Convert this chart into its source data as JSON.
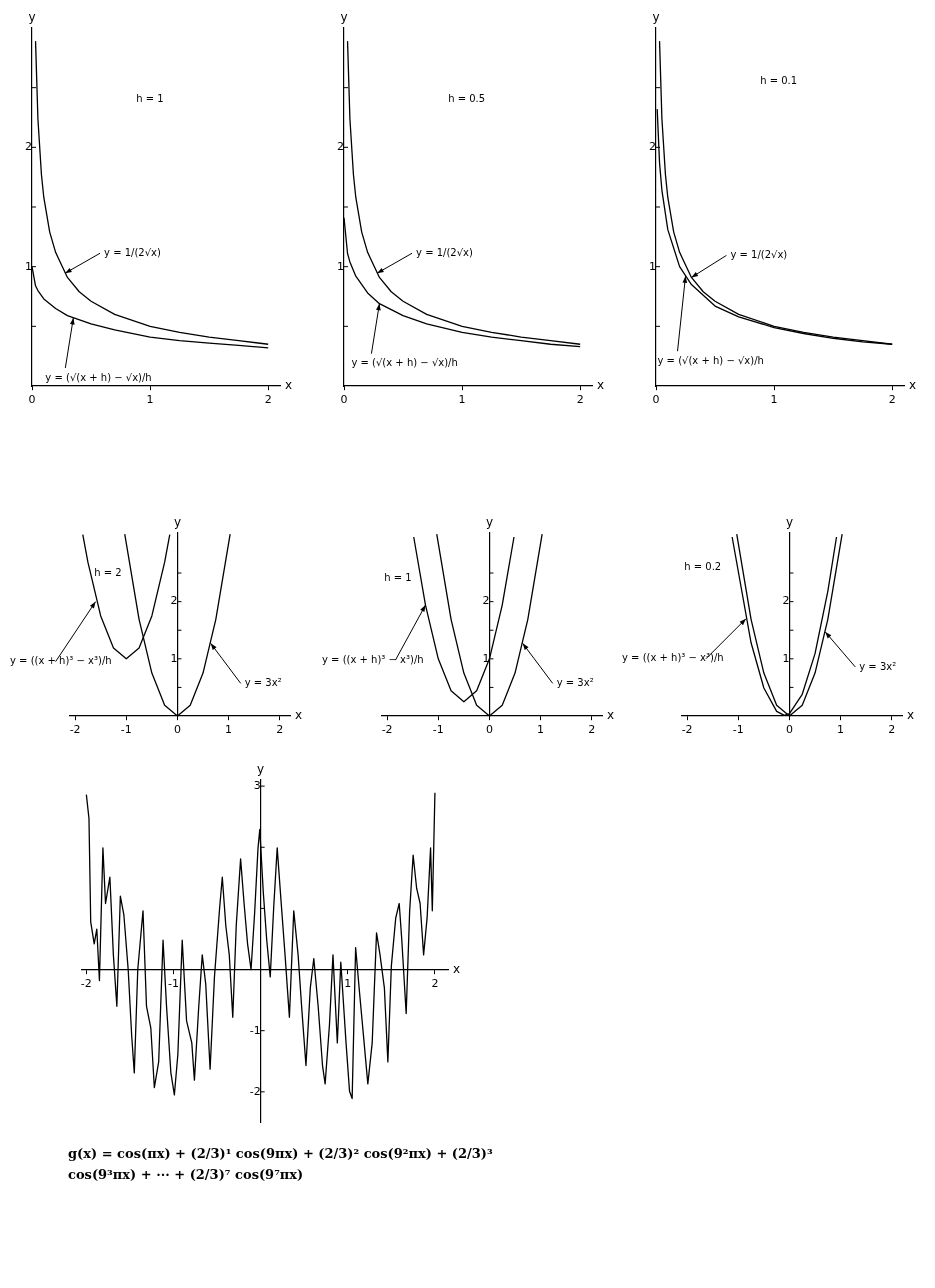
{
  "chart_data": [
    {
      "type": "line",
      "xlabel": "x",
      "ylabel": "y",
      "xlim": [
        0,
        2.1
      ],
      "ylim": [
        0,
        3
      ],
      "xticks": [
        0,
        1,
        2
      ],
      "yticks": [
        {
          "value": 0.5,
          "label": null
        },
        1,
        {
          "value": 1.5,
          "label": null
        },
        2,
        {
          "value": 2.5,
          "label": null
        }
      ],
      "marker": "none",
      "line_style": "solid",
      "annotations": [
        "h = 1",
        {
          "text": "y = 1/(2√x)",
          "x": 0.28,
          "y": 0.945
        },
        {
          "text": "y = (√(x + h) − √x)/h",
          "x": 0.35,
          "y": 0.57
        }
      ],
      "series": [
        {
          "color": "#000000",
          "x": [
            0.03,
            0.05,
            0.08,
            0.1,
            0.15,
            0.2,
            0.3,
            0.4,
            0.5,
            0.7,
            1,
            1.25,
            1.5,
            1.75,
            2
          ],
          "values": [
            2.89,
            2.24,
            1.77,
            1.58,
            1.29,
            1.12,
            0.91,
            0.79,
            0.71,
            0.6,
            0.5,
            0.45,
            0.41,
            0.38,
            0.35
          ]
        },
        {
          "color": "#000000",
          "x": [
            0,
            0.03,
            0.05,
            0.1,
            0.2,
            0.3,
            0.5,
            0.7,
            1,
            1.25,
            1.5,
            1.75,
            2
          ],
          "values": [
            1,
            0.84,
            0.8,
            0.73,
            0.65,
            0.59,
            0.52,
            0.47,
            0.41,
            0.38,
            0.36,
            0.34,
            0.32
          ]
        }
      ]
    },
    {
      "type": "line",
      "xlabel": "x",
      "ylabel": "y",
      "xlim": [
        0,
        2.1
      ],
      "ylim": [
        0,
        3
      ],
      "xticks": [
        0,
        1,
        2
      ],
      "yticks": [
        {
          "value": 0.5,
          "label": null
        },
        1,
        {
          "value": 1.5,
          "label": null
        },
        2,
        {
          "value": 2.5,
          "label": null
        }
      ],
      "marker": "none",
      "line_style": "solid",
      "annotations": [
        "h = 0.5",
        {
          "text": "y = 1/(2√x)",
          "x": 0.28,
          "y": 0.945
        },
        {
          "text": "y = (√(x + h) − √x)/h",
          "x": 0.3,
          "y": 0.69
        }
      ],
      "series": [
        {
          "color": "#000000",
          "x": [
            0.03,
            0.05,
            0.08,
            0.1,
            0.15,
            0.2,
            0.3,
            0.4,
            0.5,
            0.7,
            1,
            1.25,
            1.5,
            1.75,
            2
          ],
          "values": [
            2.89,
            2.24,
            1.77,
            1.58,
            1.29,
            1.12,
            0.91,
            0.79,
            0.71,
            0.6,
            0.5,
            0.45,
            0.41,
            0.38,
            0.35
          ]
        },
        {
          "color": "#000000",
          "x": [
            0,
            0.03,
            0.05,
            0.1,
            0.2,
            0.3,
            0.5,
            0.7,
            1,
            1.25,
            1.5,
            1.75,
            2
          ],
          "values": [
            1.41,
            1.11,
            1.04,
            0.92,
            0.78,
            0.69,
            0.59,
            0.52,
            0.45,
            0.41,
            0.38,
            0.35,
            0.33
          ]
        }
      ]
    },
    {
      "type": "line",
      "xlabel": "x",
      "ylabel": "y",
      "xlim": [
        0,
        2.1
      ],
      "ylim": [
        0,
        3
      ],
      "xticks": [
        0,
        1,
        2
      ],
      "yticks": [
        {
          "value": 0.5,
          "label": null
        },
        1,
        {
          "value": 1.5,
          "label": null
        },
        2,
        {
          "value": 2.5,
          "label": null
        }
      ],
      "marker": "none",
      "line_style": "solid",
      "annotations": [
        "h = 0.1",
        {
          "text": "y = 1/(2√x)",
          "x": 0.3,
          "y": 0.91
        },
        {
          "text": "y = (√(x + h) − √x)/h",
          "x": 0.25,
          "y": 0.92
        }
      ],
      "series": [
        {
          "color": "#000000",
          "x": [
            0.03,
            0.05,
            0.08,
            0.1,
            0.15,
            0.2,
            0.3,
            0.4,
            0.5,
            0.7,
            1,
            1.25,
            1.5,
            1.75,
            2
          ],
          "values": [
            2.89,
            2.24,
            1.77,
            1.58,
            1.29,
            1.12,
            0.91,
            0.79,
            0.71,
            0.6,
            0.5,
            0.45,
            0.41,
            0.38,
            0.35
          ]
        },
        {
          "color": "#000000",
          "x": [
            0.01,
            0.03,
            0.05,
            0.1,
            0.2,
            0.3,
            0.5,
            0.7,
            1,
            1.25,
            1.5,
            1.75,
            2
          ],
          "values": [
            2.32,
            1.87,
            1.64,
            1.31,
            1,
            0.85,
            0.67,
            0.58,
            0.49,
            0.44,
            0.4,
            0.37,
            0.35
          ]
        }
      ]
    },
    {
      "type": "line",
      "xlabel": "x",
      "ylabel": "y",
      "xlim": [
        -2.1,
        2.2
      ],
      "ylim": [
        0,
        3.2
      ],
      "xticks": [
        -2,
        -1,
        0,
        1,
        2
      ],
      "yticks": [
        {
          "value": 0.5,
          "label": null
        },
        1,
        {
          "value": 1.5,
          "label": null
        },
        2,
        {
          "value": 2.5,
          "label": null
        }
      ],
      "marker": "none",
      "line_style": "solid",
      "annotations": [
        "h = 2",
        {
          "text": "y = ((x + h)³ − x³)/h",
          "x": -1.6,
          "y": 2
        },
        {
          "text": "y = 3x²",
          "x": 0.65,
          "y": 1.27
        }
      ],
      "series": [
        {
          "color": "#000000",
          "x": [
            -1.85,
            -1.75,
            -1.5,
            -1.25,
            -1,
            -0.75,
            -0.5,
            -0.25,
            -0.15
          ],
          "values": [
            3.17,
            2.69,
            1.75,
            1.19,
            1,
            1.19,
            1.75,
            2.69,
            3.17
          ]
        },
        {
          "color": "#000000",
          "x": [
            -1.03,
            -0.75,
            -0.5,
            -0.25,
            0,
            0.25,
            0.5,
            0.75,
            1.03
          ],
          "values": [
            3.18,
            1.69,
            0.75,
            0.19,
            0,
            0.19,
            0.75,
            1.69,
            3.18
          ]
        }
      ]
    },
    {
      "type": "line",
      "xlabel": "x",
      "ylabel": "y",
      "xlim": [
        -2.1,
        2.2
      ],
      "ylim": [
        0,
        3.2
      ],
      "xticks": [
        -2,
        -1,
        0,
        1,
        2
      ],
      "yticks": [
        {
          "value": 0.5,
          "label": null
        },
        1,
        {
          "value": 1.5,
          "label": null
        },
        2,
        {
          "value": 2.5,
          "label": null
        }
      ],
      "marker": "none",
      "line_style": "solid",
      "annotations": [
        "h = 1",
        {
          "text": "y = ((x + h)³ − x³)/h",
          "x": -1.25,
          "y": 1.94
        },
        {
          "text": "y = 3x²",
          "x": 0.65,
          "y": 1.27
        }
      ],
      "series": [
        {
          "color": "#000000",
          "x": [
            -1.48,
            -1.25,
            -1,
            -0.75,
            -0.5,
            -0.25,
            0,
            0.25,
            0.48
          ],
          "values": [
            3.13,
            1.94,
            1,
            0.44,
            0.25,
            0.44,
            1,
            1.94,
            3.13
          ]
        },
        {
          "color": "#000000",
          "x": [
            -1.03,
            -0.75,
            -0.5,
            -0.25,
            0,
            0.25,
            0.5,
            0.75,
            1.03
          ],
          "values": [
            3.18,
            1.69,
            0.75,
            0.19,
            0,
            0.19,
            0.75,
            1.69,
            3.18
          ]
        }
      ]
    },
    {
      "type": "line",
      "xlabel": "x",
      "ylabel": "y",
      "xlim": [
        -2.1,
        2.2
      ],
      "ylim": [
        0,
        3.2
      ],
      "xticks": [
        -2,
        -1,
        0,
        1,
        2
      ],
      "yticks": [
        {
          "value": 0.5,
          "label": null
        },
        1,
        {
          "value": 1.5,
          "label": null
        },
        2,
        {
          "value": 2.5,
          "label": null
        }
      ],
      "marker": "none",
      "line_style": "solid",
      "annotations": [
        "h = 0.2",
        {
          "text": "y = ((x + h)³ − x³)/h",
          "x": -0.85,
          "y": 1.7
        },
        {
          "text": "y = 3x²",
          "x": 0.7,
          "y": 1.47
        }
      ],
      "series": [
        {
          "color": "#000000",
          "x": [
            -1.12,
            -0.75,
            -0.5,
            -0.25,
            -0.1,
            0,
            0.25,
            0.5,
            0.75,
            0.92
          ],
          "values": [
            3.13,
            1.28,
            0.49,
            0.08,
            0.01,
            0.04,
            0.38,
            1.09,
            2.18,
            3.13
          ]
        },
        {
          "color": "#000000",
          "x": [
            -1.03,
            -0.75,
            -0.5,
            -0.25,
            0,
            0.25,
            0.5,
            0.75,
            1.03
          ],
          "values": [
            3.18,
            1.69,
            0.75,
            0.19,
            0,
            0.19,
            0.75,
            1.69,
            3.18
          ]
        }
      ]
    },
    {
      "type": "line",
      "xlabel": "x",
      "ylabel": "y",
      "xlim": [
        -2.05,
        2.15
      ],
      "ylim": [
        -2.5,
        3.1
      ],
      "xticks": [
        -2,
        -1,
        1,
        2
      ],
      "yticks": [
        -2,
        -1,
        {
          "value": 1,
          "label": null
        },
        {
          "value": 2,
          "label": null
        },
        3
      ],
      "marker": "none",
      "line_style": "solid",
      "annotations": [
        "g(x) = cos(πx) + (2/3)¹ cos(9πx) + (2/3)² cos(9²πx) + (2/3)³ cos(9³πx) + ··· + (2/3)⁷ cos(9⁷πx)"
      ],
      "series": [
        {
          "color": "#000000",
          "x": [
            -2,
            -1.97,
            -1.95,
            -1.91,
            -1.88,
            -1.85,
            -1.81,
            -1.78,
            -1.73,
            -1.69,
            -1.65,
            -1.61,
            -1.57,
            -1.52,
            -1.48,
            -1.45,
            -1.41,
            -1.35,
            -1.31,
            -1.26,
            -1.22,
            -1.17,
            -1.12,
            -1.08,
            -1.03,
            -0.99,
            -0.95,
            -0.9,
            -0.85,
            -0.79,
            -0.76,
            -0.71,
            -0.67,
            -0.63,
            -0.58,
            -0.53,
            -0.47,
            -0.44,
            -0.4,
            -0.36,
            -0.32,
            -0.28,
            -0.23,
            -0.19,
            -0.15,
            -0.11,
            -0.07,
            -0.03,
            -0.01,
            0.03,
            0.07,
            0.11,
            0.15,
            0.19,
            0.23,
            0.28,
            0.33,
            0.38,
            0.43,
            0.47,
            0.52,
            0.57,
            0.61,
            0.66,
            0.71,
            0.74,
            0.79,
            0.83,
            0.88,
            0.92,
            0.98,
            1.02,
            1.05,
            1.09,
            1.13,
            1.18,
            1.23,
            1.28,
            1.33,
            1.37,
            1.42,
            1.46,
            1.5,
            1.55,
            1.59,
            1.62,
            1.67,
            1.71,
            1.75,
            1.79,
            1.83,
            1.87,
            1.91,
            1.95,
            1.97,
            2
          ],
          "values": [
            2.86,
            2.47,
            0.78,
            0.42,
            0.66,
            -0.18,
            1.99,
            1.08,
            1.51,
            0.24,
            -0.6,
            1.2,
            0.9,
            0,
            -1.08,
            -1.69,
            0,
            0.96,
            -0.6,
            -0.96,
            -1.93,
            -1.51,
            0.48,
            -0.6,
            -1.69,
            -2.05,
            -1.39,
            0.48,
            -0.84,
            -1.2,
            -1.81,
            -0.6,
            0.24,
            -0.24,
            -1.63,
            -0.12,
            1.02,
            1.51,
            0.72,
            0.24,
            -0.78,
            0.72,
            1.81,
            1.08,
            0.42,
            0,
            0.9,
            1.99,
            2.29,
            1.27,
            0.48,
            -0.12,
            1.02,
            1.99,
            1.2,
            0.24,
            -0.78,
            0.96,
            0.24,
            -0.6,
            -1.57,
            -0.3,
            0.18,
            -0.6,
            -1.57,
            -1.87,
            -0.9,
            0.24,
            -1.2,
            0.12,
            -1.2,
            -1.99,
            -2.11,
            0.36,
            -0.3,
            -1.08,
            -1.87,
            -1.2,
            0.6,
            0.24,
            -0.3,
            -1.51,
            0.06,
            0.84,
            1.08,
            0.48,
            -0.72,
            0.96,
            1.87,
            1.33,
            1.08,
            0.24,
            0.84,
            1.99,
            0.96,
            2.89
          ]
        }
      ]
    }
  ]
}
